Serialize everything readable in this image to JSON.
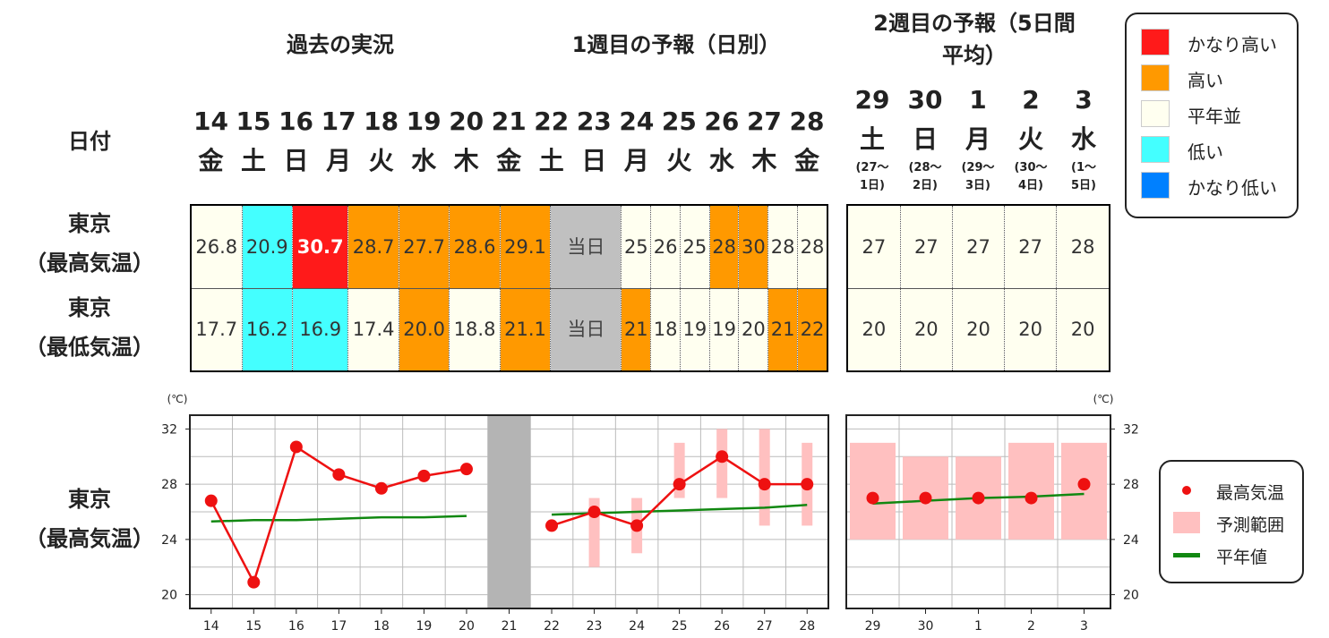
{
  "headers": {
    "past": "過去の実況",
    "week1": "1週目の予報（日別）",
    "week2_l1": "2週目の予報（5日間",
    "week2_l2": "平均）"
  },
  "row_labels": {
    "date": "日付",
    "tokyo": "東京",
    "max": "（最高気温）",
    "min": "（最低気温）"
  },
  "colors": {
    "very_high": "#ff1a1a",
    "high": "#ff9900",
    "normal": "#fffff0",
    "low": "#44ffff",
    "very_low": "#0080ff",
    "today": "#c0c0c0"
  },
  "days": [
    {
      "d": "14",
      "w": "金"
    },
    {
      "d": "15",
      "w": "土"
    },
    {
      "d": "16",
      "w": "日"
    },
    {
      "d": "17",
      "w": "月"
    },
    {
      "d": "18",
      "w": "火"
    },
    {
      "d": "19",
      "w": "水"
    },
    {
      "d": "20",
      "w": "木"
    },
    {
      "d": "21",
      "w": "金"
    },
    {
      "d": "22",
      "w": "土"
    },
    {
      "d": "23",
      "w": "日"
    },
    {
      "d": "24",
      "w": "月"
    },
    {
      "d": "25",
      "w": "火"
    },
    {
      "d": "26",
      "w": "水"
    },
    {
      "d": "27",
      "w": "木"
    },
    {
      "d": "28",
      "w": "金"
    }
  ],
  "week2_days": [
    {
      "d": "29",
      "w": "土",
      "r1": "(27〜",
      "r2": "1日)"
    },
    {
      "d": "30",
      "w": "日",
      "r1": "(28〜",
      "r2": "2日)"
    },
    {
      "d": "1",
      "w": "月",
      "r1": "(29〜",
      "r2": "3日)"
    },
    {
      "d": "2",
      "w": "火",
      "r1": "(30〜",
      "r2": "4日)"
    },
    {
      "d": "3",
      "w": "水",
      "r1": "(1〜",
      "r2": "5日)"
    }
  ],
  "today_text": "当日",
  "max_cells": [
    {
      "v": "26.8",
      "c": "normal"
    },
    {
      "v": "20.9",
      "c": "low"
    },
    {
      "v": "30.7",
      "c": "very_high"
    },
    {
      "v": "28.7",
      "c": "high"
    },
    {
      "v": "27.7",
      "c": "high"
    },
    {
      "v": "28.6",
      "c": "high"
    },
    {
      "v": "29.1",
      "c": "high"
    },
    {
      "v": "",
      "c": "today"
    },
    {
      "v": "25",
      "c": "normal"
    },
    {
      "v": "26",
      "c": "normal"
    },
    {
      "v": "25",
      "c": "normal"
    },
    {
      "v": "28",
      "c": "high"
    },
    {
      "v": "30",
      "c": "high"
    },
    {
      "v": "28",
      "c": "normal"
    },
    {
      "v": "28",
      "c": "normal"
    }
  ],
  "min_cells": [
    {
      "v": "17.7",
      "c": "normal"
    },
    {
      "v": "16.2",
      "c": "low"
    },
    {
      "v": "16.9",
      "c": "low"
    },
    {
      "v": "17.4",
      "c": "normal"
    },
    {
      "v": "20.0",
      "c": "high"
    },
    {
      "v": "18.8",
      "c": "normal"
    },
    {
      "v": "21.1",
      "c": "high"
    },
    {
      "v": "",
      "c": "today"
    },
    {
      "v": "21",
      "c": "high"
    },
    {
      "v": "18",
      "c": "normal"
    },
    {
      "v": "19",
      "c": "normal"
    },
    {
      "v": "19",
      "c": "normal"
    },
    {
      "v": "20",
      "c": "normal"
    },
    {
      "v": "21",
      "c": "high"
    },
    {
      "v": "22",
      "c": "high"
    }
  ],
  "week2_max": [
    {
      "v": "27",
      "c": "normal"
    },
    {
      "v": "27",
      "c": "normal"
    },
    {
      "v": "27",
      "c": "normal"
    },
    {
      "v": "27",
      "c": "normal"
    },
    {
      "v": "28",
      "c": "normal"
    }
  ],
  "week2_min": [
    {
      "v": "20",
      "c": "normal"
    },
    {
      "v": "20",
      "c": "normal"
    },
    {
      "v": "20",
      "c": "normal"
    },
    {
      "v": "20",
      "c": "normal"
    },
    {
      "v": "20",
      "c": "normal"
    }
  ],
  "legend_top": [
    {
      "label": "かなり高い",
      "c": "very_high"
    },
    {
      "label": "高い",
      "c": "high"
    },
    {
      "label": "平年並",
      "c": "normal"
    },
    {
      "label": "低い",
      "c": "low"
    },
    {
      "label": "かなり低い",
      "c": "very_low"
    }
  ],
  "chart_data": {
    "type": "line",
    "unit_label": "(℃)",
    "ylim": [
      19,
      33
    ],
    "yticks": [
      20,
      24,
      28,
      32
    ],
    "x": [
      "14",
      "15",
      "16",
      "17",
      "18",
      "19",
      "20",
      "21",
      "22",
      "23",
      "24",
      "25",
      "26",
      "27",
      "28"
    ],
    "x_week2": [
      "29",
      "30",
      "1",
      "2",
      "3"
    ],
    "series_max": [
      26.8,
      20.9,
      30.7,
      28.7,
      27.7,
      28.6,
      29.1,
      null,
      25,
      26,
      25,
      28,
      30,
      28,
      28
    ],
    "normal": [
      25.3,
      25.4,
      25.4,
      25.5,
      25.6,
      25.6,
      25.7,
      null,
      25.8,
      25.9,
      26.0,
      26.1,
      26.2,
      26.3,
      26.5
    ],
    "range": [
      null,
      null,
      null,
      null,
      null,
      null,
      null,
      null,
      null,
      [
        22,
        27
      ],
      [
        23,
        27
      ],
      [
        27,
        31
      ],
      [
        27,
        32
      ],
      [
        25,
        32
      ],
      [
        25,
        31
      ]
    ],
    "week2_max": [
      27,
      27,
      27,
      27,
      28
    ],
    "week2_normal": [
      26.6,
      26.8,
      27.0,
      27.1,
      27.3
    ],
    "week2_range": [
      [
        24,
        31
      ],
      [
        24,
        30
      ],
      [
        24,
        30
      ],
      [
        24,
        31
      ],
      [
        24,
        31
      ]
    ],
    "today_index": 7,
    "grid": true,
    "legend": [
      {
        "label": "最高気温",
        "kind": "dot",
        "color": "#ee1111"
      },
      {
        "label": "予測範囲",
        "kind": "box",
        "color": "#ffc0c0"
      },
      {
        "label": "平年値",
        "kind": "line",
        "color": "#118811"
      }
    ]
  }
}
